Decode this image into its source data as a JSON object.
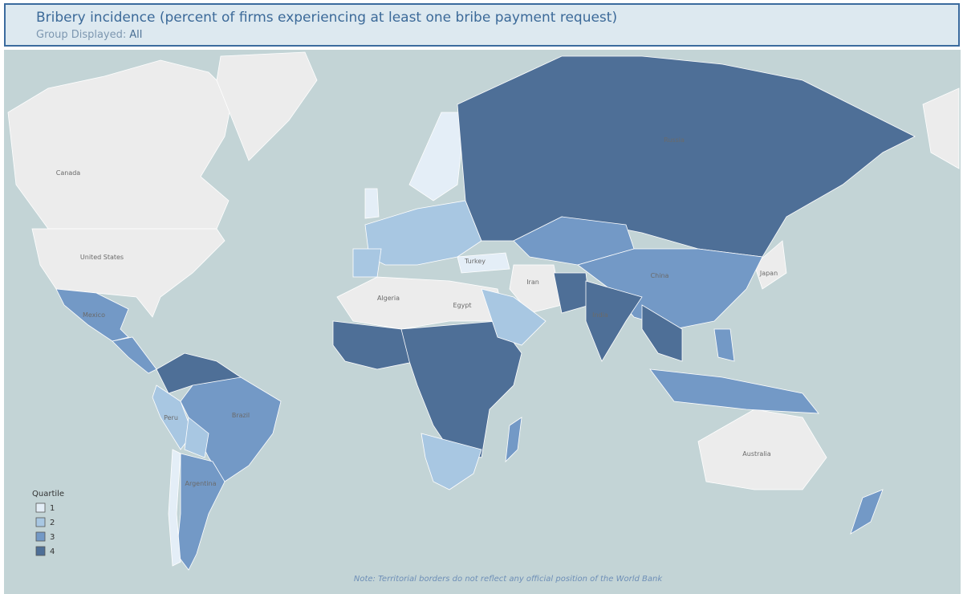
{
  "header": {
    "title": "Bribery incidence (percent of firms experiencing at least one bribe payment request)",
    "group_label": "Group Displayed:",
    "group_value": "All"
  },
  "legend": {
    "title": "Quartile",
    "items": [
      {
        "label": "1",
        "color": "#e4eef7"
      },
      {
        "label": "2",
        "color": "#a8c7e2"
      },
      {
        "label": "3",
        "color": "#7399c6"
      },
      {
        "label": "4",
        "color": "#4e6f97"
      }
    ]
  },
  "map_labels": [
    "Canada",
    "United States",
    "Russia",
    "China",
    "India",
    "Iran",
    "Algeria",
    "Australia",
    "Japan",
    "Brazil",
    "Argentina",
    "Turkey",
    "Egypt",
    "Mexico",
    "Peru"
  ],
  "note": "Note: Territorial borders do not reflect any official position of the World Bank"
}
